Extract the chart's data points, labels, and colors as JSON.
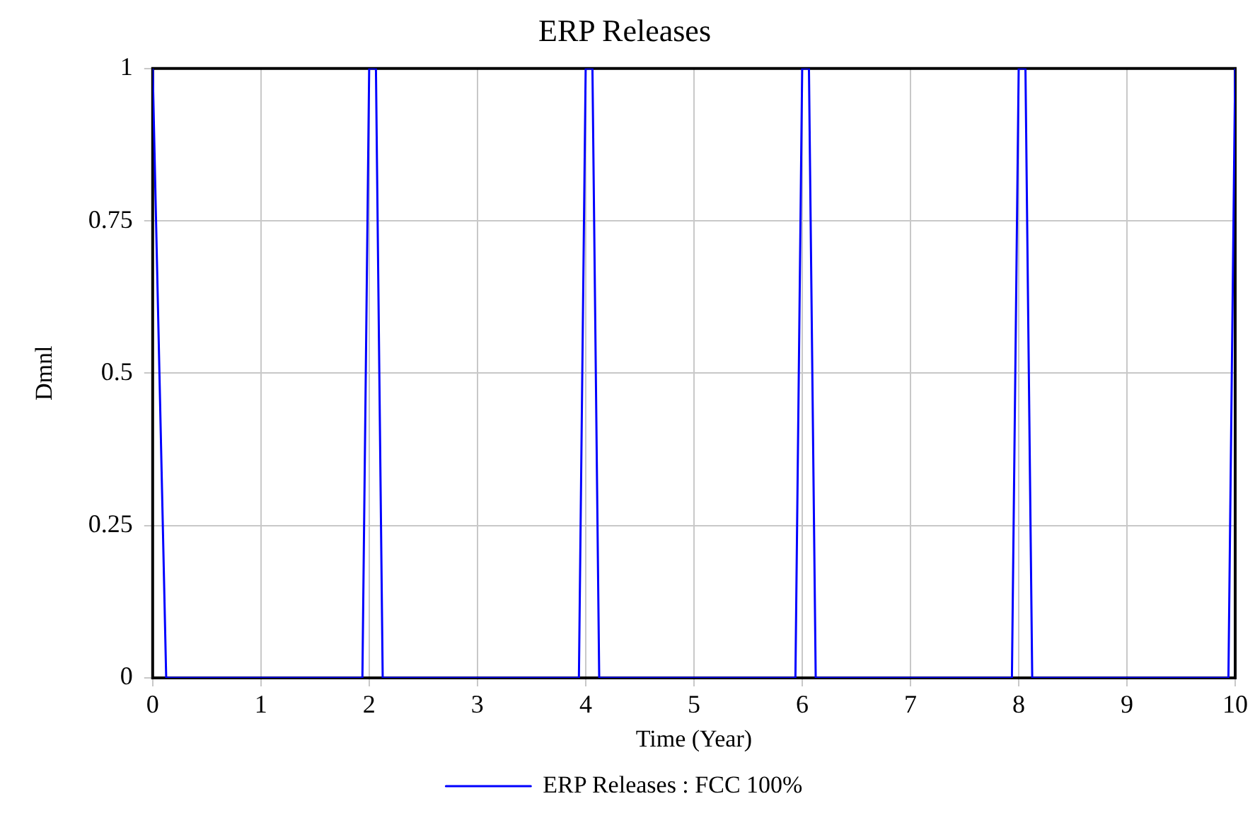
{
  "chart_data": {
    "type": "line",
    "title": "ERP Releases",
    "xlabel": "Time (Year)",
    "ylabel": "Dmnl",
    "xlim": [
      0,
      10
    ],
    "xticks": [
      0,
      1,
      2,
      3,
      4,
      5,
      6,
      7,
      8,
      9,
      10
    ],
    "ylim": [
      0,
      1
    ],
    "yticks": [
      0,
      0.25,
      0.5,
      0.75,
      1
    ],
    "grid": true,
    "legend": "bottom",
    "series": [
      {
        "name": "ERP Releases : FCC 100%",
        "color": "#0000ff",
        "x": [
          0,
          0.125,
          1.9375,
          2,
          2.0625,
          2.125,
          3.9375,
          4,
          4.0625,
          4.125,
          5.9375,
          6,
          6.0625,
          6.125,
          7.9375,
          8,
          8.0625,
          8.125,
          9.9375,
          10
        ],
        "values": [
          1,
          0,
          0,
          1,
          1,
          0,
          0,
          1,
          1,
          0,
          0,
          1,
          1,
          0,
          0,
          1,
          1,
          0,
          0,
          1
        ]
      }
    ]
  }
}
